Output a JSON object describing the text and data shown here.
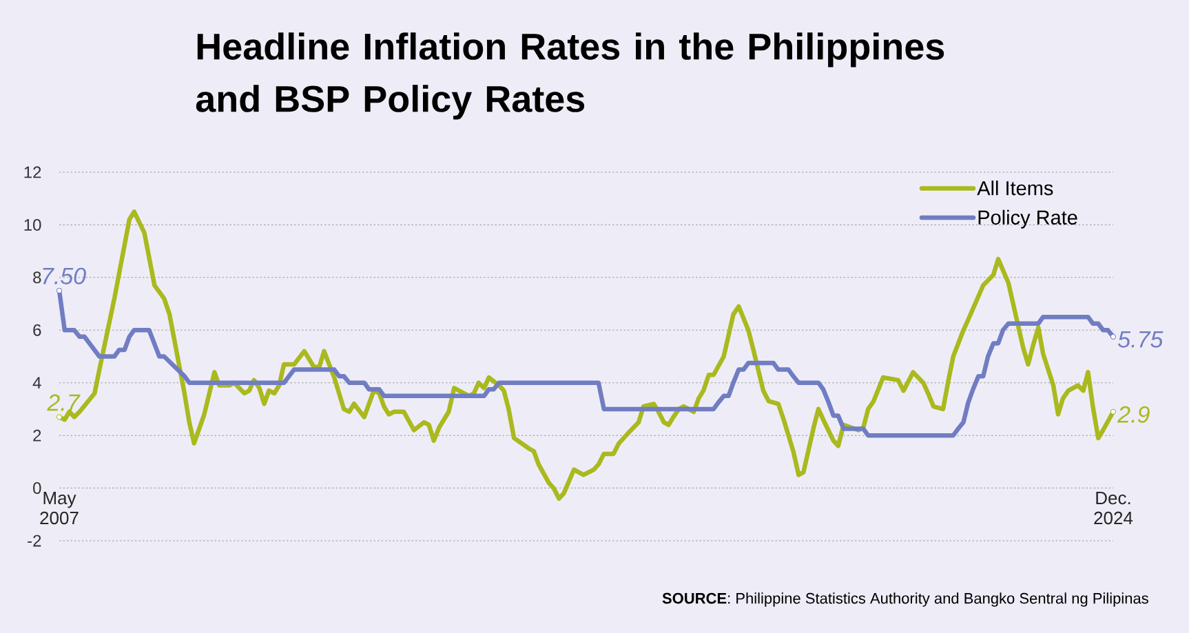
{
  "chart_data": {
    "type": "line",
    "title": "Headline Inflation Rates in the Philippines and BSP Policy Rates",
    "xlim": [
      "2007-05",
      "2024-12"
    ],
    "xticks": [
      {
        "value": "2007-05",
        "label": "May 2007"
      },
      {
        "value": "2024-12",
        "label": "Dec. 2024"
      }
    ],
    "ylim": [
      -2,
      12
    ],
    "yticks": [
      -2,
      0,
      2,
      4,
      6,
      8,
      10,
      12
    ],
    "grid": "y",
    "legend": "top right",
    "series": [
      {
        "name": "All Items",
        "color": "#AAB91E",
        "x": [
          "2007-05",
          "2007-06",
          "2007-07",
          "2007-08",
          "2007-09",
          "2007-12",
          "2008-01",
          "2008-04",
          "2008-07",
          "2008-08",
          "2008-10",
          "2008-12",
          "2009-02",
          "2009-03",
          "2009-06",
          "2009-07",
          "2009-08",
          "2009-10",
          "2009-12",
          "2010-01",
          "2010-03",
          "2010-04",
          "2010-06",
          "2010-07",
          "2010-08",
          "2010-09",
          "2010-10",
          "2010-11",
          "2010-12",
          "2011-01",
          "2011-02",
          "2011-04",
          "2011-06",
          "2011-08",
          "2011-09",
          "2011-10",
          "2011-12",
          "2012-02",
          "2012-03",
          "2012-04",
          "2012-06",
          "2012-08",
          "2012-09",
          "2012-10",
          "2012-11",
          "2012-12",
          "2013-02",
          "2013-04",
          "2013-06",
          "2013-07",
          "2013-08",
          "2013-09",
          "2013-11",
          "2013-12",
          "2014-03",
          "2014-04",
          "2014-05",
          "2014-06",
          "2014-07",
          "2014-09",
          "2014-10",
          "2014-11",
          "2014-12",
          "2015-03",
          "2015-04",
          "2015-05",
          "2015-07",
          "2015-08",
          "2015-09",
          "2015-10",
          "2015-12",
          "2016-02",
          "2016-04",
          "2016-05",
          "2016-06",
          "2016-08",
          "2016-09",
          "2016-11",
          "2017-01",
          "2017-02",
          "2017-04",
          "2017-05",
          "2017-06",
          "2017-07",
          "2017-08",
          "2017-09",
          "2017-10",
          "2017-12",
          "2018-01",
          "2018-02",
          "2018-03",
          "2018-04",
          "2018-06",
          "2018-08",
          "2018-09",
          "2018-11",
          "2018-12",
          "2019-02",
          "2019-03",
          "2019-05",
          "2019-06",
          "2019-08",
          "2019-09",
          "2019-10",
          "2019-12",
          "2020-01",
          "2020-02",
          "2020-04",
          "2020-05",
          "2020-06",
          "2020-09",
          "2020-10",
          "2020-11",
          "2020-12",
          "2021-02",
          "2021-05",
          "2021-06",
          "2021-08",
          "2021-10",
          "2021-11",
          "2021-12",
          "2022-02",
          "2022-03",
          "2022-04",
          "2022-06",
          "2022-07",
          "2022-10",
          "2022-12",
          "2023-01",
          "2023-03",
          "2023-06",
          "2023-07",
          "2023-08",
          "2023-09",
          "2023-10",
          "2023-12",
          "2024-01",
          "2024-02",
          "2024-03",
          "2024-05",
          "2024-06",
          "2024-07",
          "2024-08",
          "2024-09",
          "2024-10",
          "2024-12"
        ],
        "values": [
          2.7,
          2.6,
          2.9,
          2.7,
          2.9,
          3.6,
          4.5,
          7.2,
          10.2,
          10.5,
          9.7,
          7.7,
          7.2,
          6.6,
          3.6,
          2.5,
          1.7,
          2.8,
          4.4,
          3.9,
          3.9,
          4.0,
          3.6,
          3.7,
          4.1,
          3.8,
          3.2,
          3.7,
          3.6,
          3.9,
          4.7,
          4.7,
          5.2,
          4.6,
          4.6,
          5.2,
          4.2,
          3.0,
          2.9,
          3.2,
          2.7,
          3.7,
          3.6,
          3.1,
          2.8,
          2.9,
          2.9,
          2.2,
          2.5,
          2.4,
          1.8,
          2.3,
          2.9,
          3.8,
          3.5,
          3.6,
          4.0,
          3.8,
          4.2,
          3.9,
          3.7,
          3.0,
          1.9,
          1.5,
          1.4,
          0.9,
          0.2,
          0.0,
          -0.4,
          -0.2,
          0.7,
          0.5,
          0.7,
          0.9,
          1.3,
          1.3,
          1.7,
          2.1,
          2.5,
          3.1,
          3.2,
          2.9,
          2.5,
          2.4,
          2.7,
          3.0,
          3.1,
          2.9,
          3.4,
          3.7,
          4.3,
          4.3,
          5.0,
          6.6,
          6.9,
          6.0,
          5.2,
          3.7,
          3.3,
          3.2,
          2.6,
          1.4,
          0.5,
          0.6,
          2.3,
          3.0,
          2.6,
          1.8,
          1.6,
          2.4,
          2.2,
          2.3,
          3.0,
          3.3,
          4.2,
          4.1,
          3.7,
          4.4,
          4.0,
          3.6,
          3.1,
          3.0,
          4.1,
          5.0,
          6.0,
          6.4,
          7.7,
          8.1,
          8.7,
          7.8,
          5.3,
          4.7,
          5.4,
          6.1,
          5.1,
          3.9,
          2.8,
          3.4,
          3.7,
          3.9,
          3.7,
          4.4,
          3.1,
          1.9,
          2.2,
          2.9
        ]
      },
      {
        "name": "Policy Rate",
        "color": "#717DC2",
        "x": [
          "2007-05",
          "2007-06",
          "2007-08",
          "2007-09",
          "2007-10",
          "2008-01",
          "2008-04",
          "2008-05",
          "2008-06",
          "2008-07",
          "2008-08",
          "2008-11",
          "2009-01",
          "2009-02",
          "2009-06",
          "2009-07",
          "2011-02",
          "2011-04",
          "2011-12",
          "2012-01",
          "2012-02",
          "2012-03",
          "2012-06",
          "2012-07",
          "2012-09",
          "2012-10",
          "2014-06",
          "2014-07",
          "2014-08",
          "2014-09",
          "2016-05",
          "2016-06",
          "2018-04",
          "2018-05",
          "2018-06",
          "2018-07",
          "2018-08",
          "2018-09",
          "2018-10",
          "2018-11",
          "2019-04",
          "2019-05",
          "2019-07",
          "2019-08",
          "2019-09",
          "2020-01",
          "2020-02",
          "2020-03",
          "2020-04",
          "2020-05",
          "2020-06",
          "2020-10",
          "2020-11",
          "2022-04",
          "2022-05",
          "2022-06",
          "2022-07",
          "2022-08",
          "2022-09",
          "2022-10",
          "2022-11",
          "2022-12",
          "2023-01",
          "2023-02",
          "2023-03",
          "2023-09",
          "2023-10",
          "2024-07",
          "2024-08",
          "2024-09",
          "2024-10",
          "2024-11",
          "2024-12"
        ],
        "values": [
          7.5,
          6.0,
          6.0,
          5.75,
          5.75,
          5.0,
          5.0,
          5.25,
          5.25,
          5.75,
          6.0,
          6.0,
          5.0,
          5.0,
          4.25,
          4.0,
          4.0,
          4.5,
          4.5,
          4.25,
          4.25,
          4.0,
          4.0,
          3.75,
          3.75,
          3.5,
          3.5,
          3.75,
          3.75,
          4.0,
          4.0,
          3.0,
          3.0,
          3.25,
          3.5,
          3.5,
          4.0,
          4.5,
          4.5,
          4.75,
          4.75,
          4.5,
          4.5,
          4.25,
          4.0,
          4.0,
          3.75,
          3.25,
          2.75,
          2.75,
          2.25,
          2.25,
          2.0,
          2.0,
          2.25,
          2.5,
          3.25,
          3.75,
          4.25,
          4.25,
          5.0,
          5.5,
          5.5,
          6.0,
          6.25,
          6.25,
          6.5,
          6.5,
          6.25,
          6.25,
          6.0,
          6.0,
          5.75
        ]
      }
    ],
    "annotations": [
      {
        "text": "7.50",
        "x": "2007-05",
        "y": 7.5
      },
      {
        "text": "2.7",
        "x": "2007-05",
        "y": 2.7
      },
      {
        "text": "5.75",
        "x": "2024-12",
        "y": 5.75
      },
      {
        "text": "2.9",
        "x": "2024-12",
        "y": 2.9
      },
      "**SOURCE**: Philippine Statistics Authority and Bangko Sentral ng Pilipinas"
    ]
  }
}
